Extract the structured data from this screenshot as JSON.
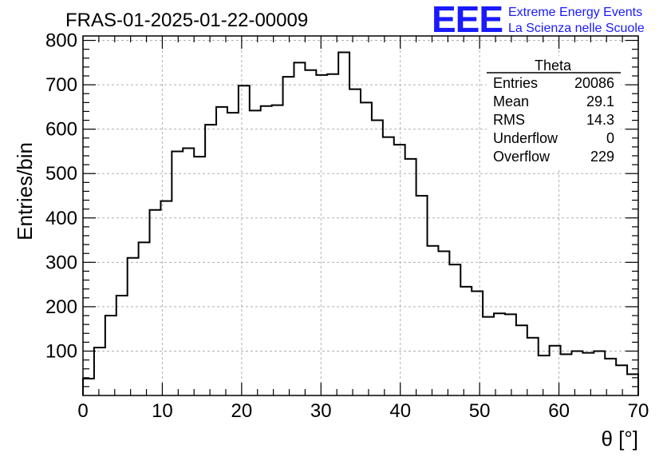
{
  "header": {
    "title": "FRAS-01-2025-01-22-00009",
    "logo_mark": "EEE",
    "logo_line1": "Extreme Energy Events",
    "logo_line2": "La Scienza nelle Scuole",
    "logo_color": "#1a1aff"
  },
  "stats_box": {
    "name": "Theta",
    "rows": [
      {
        "label": "Entries",
        "value": "20086"
      },
      {
        "label": "Mean",
        "value": "29.1"
      },
      {
        "label": "RMS",
        "value": "14.3"
      },
      {
        "label": "Underflow",
        "value": "0"
      },
      {
        "label": "Overflow",
        "value": "229"
      }
    ]
  },
  "chart_data": {
    "type": "bar",
    "style": "step-histogram",
    "xlabel": "θ [°]",
    "ylabel": "Entries/bin",
    "xlim": [
      0,
      70
    ],
    "ylim": [
      0,
      810
    ],
    "bin_width": 1.6667,
    "grid": true,
    "x_ticks": [
      0,
      10,
      20,
      30,
      40,
      50,
      60,
      70
    ],
    "y_ticks": [
      100,
      200,
      300,
      400,
      500,
      600,
      700,
      800
    ],
    "values": [
      38,
      108,
      180,
      225,
      310,
      345,
      418,
      438,
      550,
      557,
      538,
      610,
      650,
      637,
      698,
      642,
      652,
      654,
      718,
      750,
      733,
      722,
      724,
      773,
      690,
      660,
      620,
      582,
      565,
      533,
      450,
      337,
      325,
      295,
      245,
      235,
      177,
      185,
      183,
      158,
      130,
      90,
      112,
      93,
      100,
      96,
      100,
      83,
      68,
      48
    ]
  }
}
